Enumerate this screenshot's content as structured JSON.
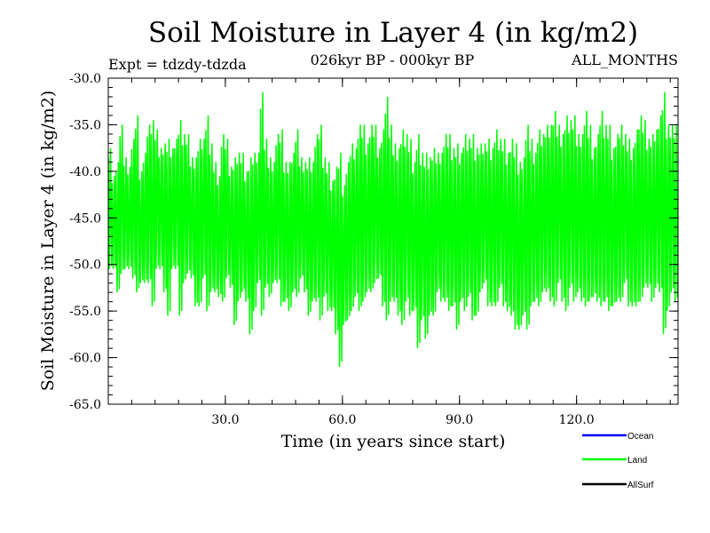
{
  "chart_data": {
    "type": "line",
    "title": "Soil Moisture in Layer 4 (in kg/m2)",
    "subtitle_left": "Expt = tdzdy-tdzda",
    "subtitle_center": "026kyr BP - 000kyr BP",
    "subtitle_right": "ALL_MONTHS",
    "xlabel": "Time (in years since start)",
    "ylabel": "Soil Moisture in Layer 4 (in kg/m2)",
    "xlim": [
      0.0,
      146.0
    ],
    "ylim": [
      -65.0,
      -30.0
    ],
    "x_ticks": [
      30,
      60,
      90,
      120
    ],
    "x_tick_labels": [
      "30.0",
      "60.0",
      "90.0",
      "120.0"
    ],
    "y_ticks": [
      -30,
      -35,
      -40,
      -45,
      -50,
      -55,
      -60,
      -65
    ],
    "y_tick_labels": [
      "-30.0",
      "-35.0",
      "-40.0",
      "-45.0",
      "-50.0",
      "-55.0",
      "-60.0",
      "-65.0"
    ],
    "series": [
      {
        "name": "Ocean",
        "color": "#0000ff",
        "values": []
      },
      {
        "name": "Land",
        "color": "#00ff00",
        "samples_per_year": 12,
        "annual_mean": [
          -44.0,
          -45.5,
          -46.0,
          -43.0,
          -44.5,
          -45.0,
          -44.0,
          -43.5,
          -46.0,
          -45.0,
          -43.5,
          -44.5,
          -43.0,
          -44.0,
          -45.0,
          -46.0,
          -44.0,
          -43.5,
          -45.0,
          -44.0,
          -43.5,
          -45.0,
          -46.5,
          -45.5,
          -44.0,
          -44.5,
          -45.0,
          -46.0,
          -47.0,
          -45.0,
          -44.0,
          -46.0,
          -47.5,
          -46.0,
          -45.5,
          -47.0,
          -48.0,
          -46.5,
          -45.0,
          -43.5,
          -44.5,
          -46.0,
          -45.5,
          -44.0,
          -45.0,
          -46.5,
          -47.0,
          -45.5,
          -44.5,
          -45.0,
          -46.0,
          -47.0,
          -46.5,
          -45.0,
          -45.5,
          -46.0,
          -47.0,
          -48.0,
          -48.5,
          -49.5,
          -49.0,
          -47.5,
          -46.0,
          -45.5,
          -45.0,
          -44.5,
          -45.0,
          -44.0,
          -43.5,
          -44.5,
          -45.0,
          -44.0,
          -44.5,
          -45.5,
          -46.5,
          -46.0,
          -45.0,
          -46.0,
          -47.0,
          -47.5,
          -47.0,
          -48.0,
          -47.0,
          -46.5,
          -45.5,
          -46.0,
          -45.0,
          -45.5,
          -46.0,
          -47.0,
          -46.0,
          -45.5,
          -45.0,
          -46.0,
          -46.5,
          -45.0,
          -44.5,
          -45.5,
          -46.0,
          -45.0,
          -44.5,
          -45.5,
          -46.5,
          -46.0,
          -47.0,
          -48.0,
          -47.0,
          -46.0,
          -45.5,
          -46.0,
          -45.0,
          -44.5,
          -44.0,
          -44.5,
          -44.0,
          -43.5,
          -45.0,
          -44.5,
          -43.5,
          -44.0,
          -44.5,
          -45.0,
          -44.0,
          -44.5,
          -45.5,
          -45.0,
          -44.0,
          -44.5,
          -45.0,
          -46.0,
          -45.0,
          -44.5,
          -44.0,
          -45.5,
          -46.0,
          -45.0,
          -44.0,
          -43.5,
          -44.5,
          -45.0,
          -44.0,
          -43.5,
          -44.5,
          -45.0,
          -44.0,
          -44.5
        ],
        "seasonal_amplitude": [
          6.5,
          5.0,
          7.0,
          8.0,
          6.0,
          5.5,
          7.5,
          9.5,
          6.0,
          7.0,
          8.5,
          10.0,
          7.5,
          6.5,
          8.0,
          9.5,
          6.5,
          7.0,
          10.5,
          8.0,
          7.5,
          6.5,
          8.0,
          9.0,
          7.5,
          10.5,
          8.0,
          7.0,
          6.5,
          9.0,
          7.5,
          6.5,
          9.0,
          8.0,
          7.5,
          7.0,
          9.5,
          8.5,
          7.0,
          12.0,
          8.0,
          7.5,
          6.5,
          8.0,
          9.5,
          7.5,
          8.0,
          7.5,
          9.0,
          6.5,
          7.0,
          8.5,
          7.5,
          9.0,
          10.5,
          7.5,
          8.0,
          7.0,
          9.0,
          11.5,
          7.5,
          8.5,
          9.0,
          8.0,
          10.0,
          9.5,
          8.0,
          9.0,
          8.5,
          7.0,
          9.5,
          12.0,
          9.5,
          8.5,
          9.0,
          10.5,
          9.0,
          9.5,
          8.0,
          11.5,
          9.0,
          10.0,
          8.5,
          9.0,
          7.5,
          8.0,
          9.0,
          9.5,
          8.5,
          10.0,
          8.0,
          9.5,
          8.5,
          10.0,
          9.0,
          8.0,
          7.5,
          9.0,
          8.5,
          9.5,
          8.0,
          9.0,
          8.5,
          9.5,
          10.0,
          9.0,
          8.5,
          11.0,
          9.0,
          8.0,
          9.5,
          8.5,
          9.0,
          9.5,
          10.5,
          8.5,
          9.0,
          10.5,
          9.0,
          10.0,
          8.5,
          9.0,
          10.5,
          9.5,
          8.0,
          9.0,
          10.5,
          9.5,
          10.0,
          8.5,
          9.0,
          9.5,
          8.0,
          9.0,
          8.5,
          9.5,
          10.0,
          9.0,
          8.0,
          9.0,
          8.5,
          9.5,
          13.0,
          10.0,
          9.0,
          9.5
        ]
      },
      {
        "name": "AllSurf",
        "color": "#000000",
        "values": []
      }
    ],
    "legend_position": "bottom-right",
    "grid": false
  }
}
